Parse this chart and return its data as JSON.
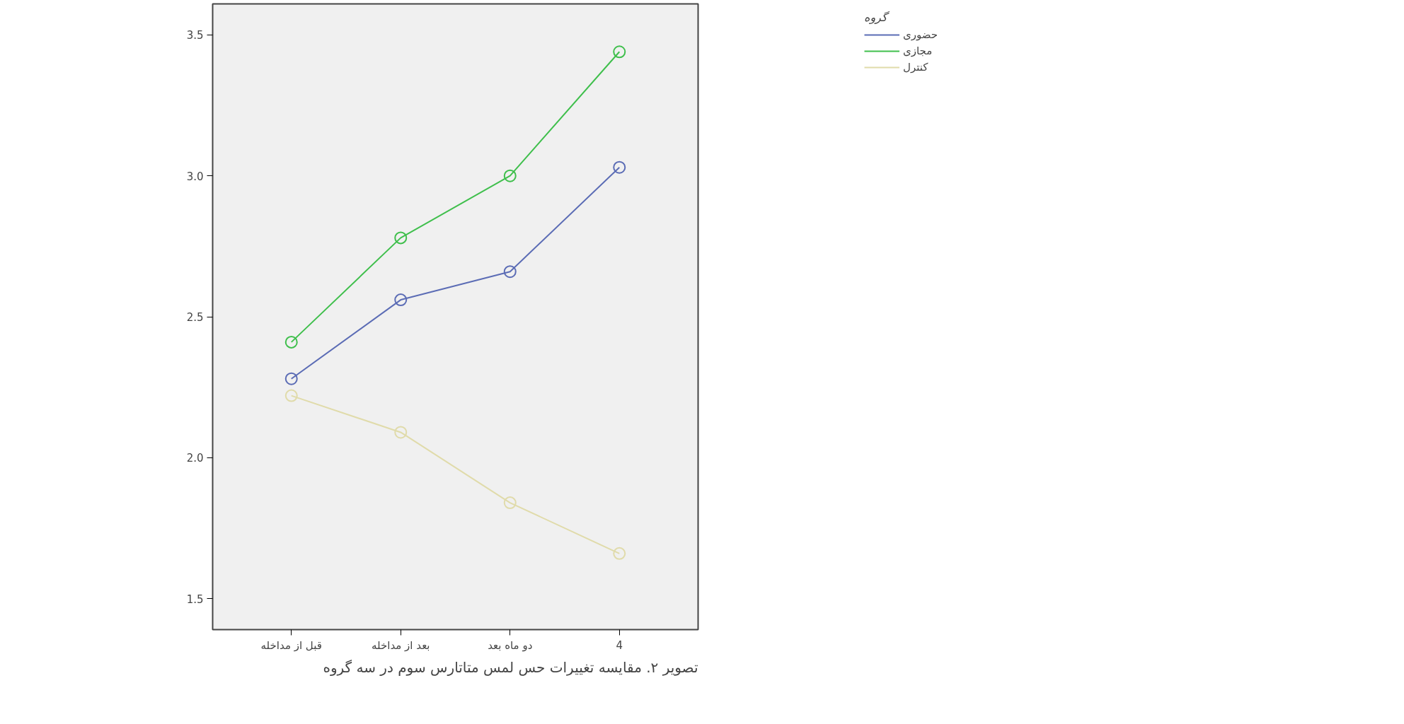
{
  "chart_data": {
    "type": "line",
    "categories": [
      "قبل از مداخله",
      "بعد از مداخله",
      "دو ماه بعد",
      "4"
    ],
    "series": [
      {
        "name": "حضوری",
        "color": "#5b6cb5",
        "values": [
          2.28,
          2.56,
          2.66,
          3.03
        ]
      },
      {
        "name": "مجازی",
        "color": "#3fbf4c",
        "values": [
          2.41,
          2.78,
          3.0,
          3.44
        ]
      },
      {
        "name": "کنترل",
        "color": "#e0dbaa",
        "values": [
          2.22,
          2.09,
          1.84,
          1.66
        ]
      }
    ],
    "ylim": [
      1.39,
      3.61
    ],
    "yticks": [
      {
        "value": 1.5,
        "label": "1.5"
      },
      {
        "value": 2.0,
        "label": "2.0"
      },
      {
        "value": 2.5,
        "label": "2.5"
      },
      {
        "value": 3.0,
        "label": "3.0"
      },
      {
        "value": 3.5,
        "label": "3.5"
      }
    ],
    "legend": "top right",
    "legend_title": "گروه",
    "marker": "circle",
    "line_style": "solid",
    "grid": false,
    "annotations": [
      "تصویر ۲. مقایسه تغییرات حس لمس متاتارس سوم در سه گروه"
    ]
  }
}
